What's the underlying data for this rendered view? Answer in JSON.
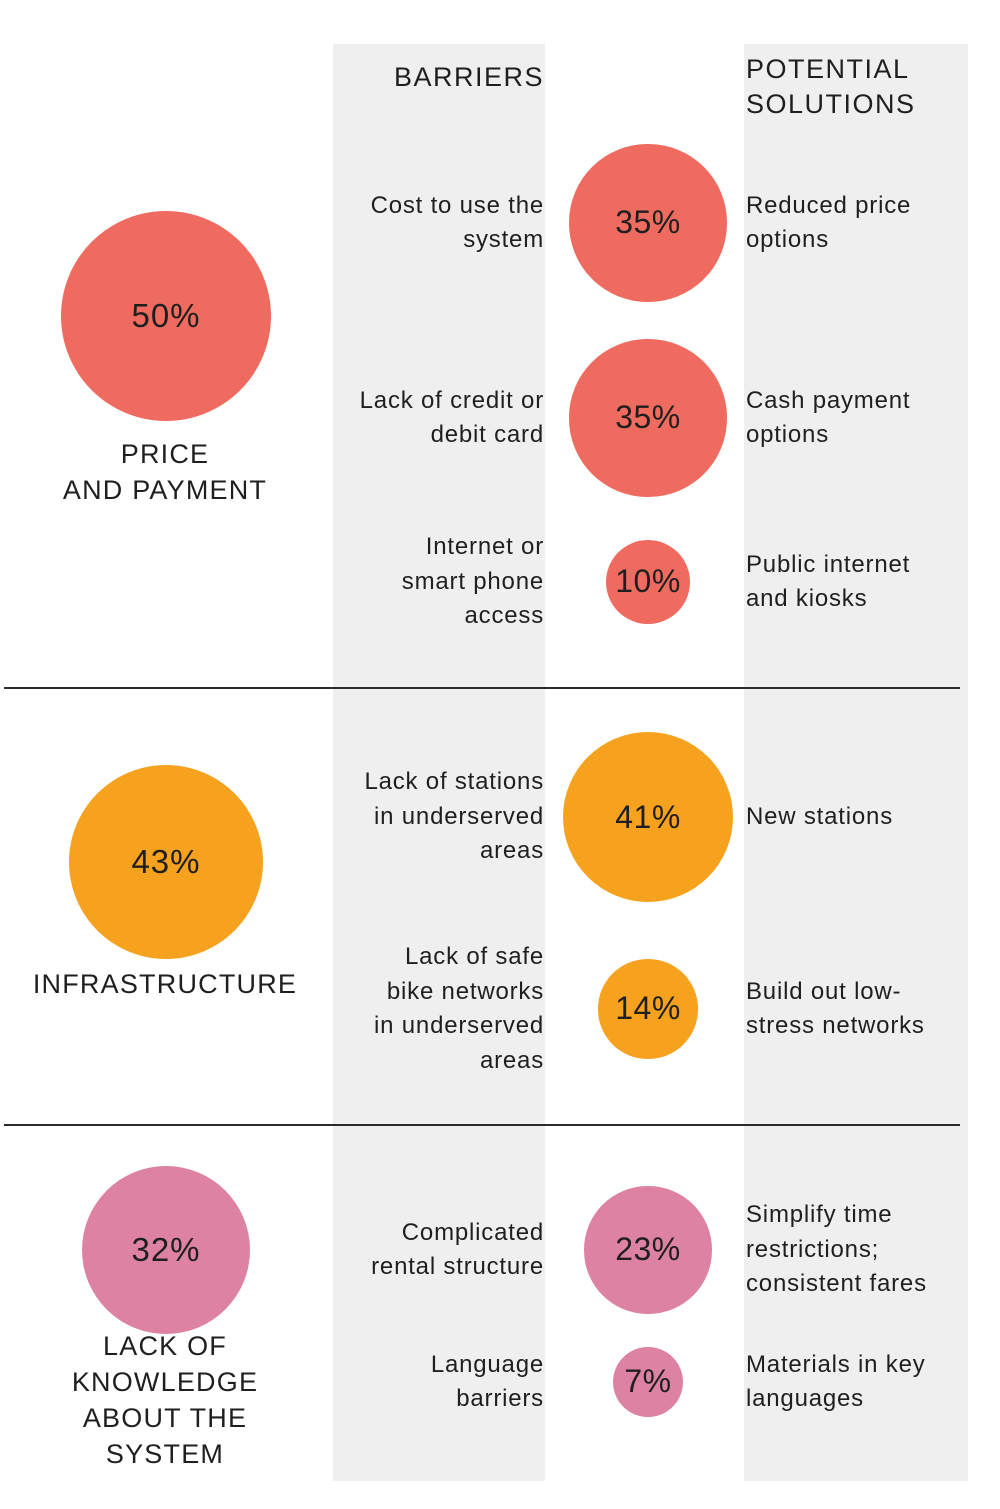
{
  "headers": {
    "barriers": "BARRIERS",
    "solutions_line1": "POTENTIAL",
    "solutions_line2": "SOLUTIONS"
  },
  "colors": {
    "price": "#f06b5f",
    "infrastructure": "#f6a21e",
    "knowledge": "#de82a3",
    "column_bg": "#efefef"
  },
  "categories": [
    {
      "label_lines": [
        "PRICE",
        "AND PAYMENT"
      ],
      "pct_label": "50%",
      "pct": 50,
      "items": [
        {
          "barrier_lines": [
            "Cost to use the",
            "system"
          ],
          "pct_label": "35%",
          "pct": 35,
          "solution_lines": [
            "Reduced price",
            "options"
          ]
        },
        {
          "barrier_lines": [
            "Lack of credit or",
            "debit card"
          ],
          "pct_label": "35%",
          "pct": 35,
          "solution_lines": [
            "Cash payment",
            "options"
          ]
        },
        {
          "barrier_lines": [
            "Internet or",
            "smart phone",
            "access"
          ],
          "pct_label": "10%",
          "pct": 10,
          "solution_lines": [
            "Public internet",
            "and kiosks"
          ]
        }
      ]
    },
    {
      "label_lines": [
        "INFRASTRUCTURE"
      ],
      "pct_label": "43%",
      "pct": 43,
      "items": [
        {
          "barrier_lines": [
            "Lack of stations",
            "in underserved",
            "areas"
          ],
          "pct_label": "41%",
          "pct": 41,
          "solution_lines": [
            "New stations"
          ]
        },
        {
          "barrier_lines": [
            "Lack of safe",
            "bike networks",
            "in underserved",
            "areas"
          ],
          "pct_label": "14%",
          "pct": 14,
          "solution_lines": [
            "Build out low-",
            "stress networks"
          ]
        }
      ]
    },
    {
      "label_lines": [
        "LACK OF",
        "KNOWLEDGE",
        "ABOUT THE",
        "SYSTEM"
      ],
      "pct_label": "32%",
      "pct": 32,
      "items": [
        {
          "barrier_lines": [
            "Complicated",
            "rental structure"
          ],
          "pct_label": "23%",
          "pct": 23,
          "solution_lines": [
            "Simplify time",
            "restrictions;",
            "consistent fares"
          ]
        },
        {
          "barrier_lines": [
            "Language",
            "barriers"
          ],
          "pct_label": "7%",
          "pct": 7,
          "solution_lines": [
            "Materials in key",
            "languages"
          ]
        }
      ]
    }
  ],
  "chart_data": {
    "type": "bubble",
    "value_unit": "%",
    "series": [
      {
        "category": "PRICE AND PAYMENT",
        "value": 50,
        "barriers": [
          {
            "barrier": "Cost to use the system",
            "value": 35,
            "solution": "Reduced price options"
          },
          {
            "barrier": "Lack of credit or debit card",
            "value": 35,
            "solution": "Cash payment options"
          },
          {
            "barrier": "Internet or smart phone access",
            "value": 10,
            "solution": "Public internet and kiosks"
          }
        ]
      },
      {
        "category": "INFRASTRUCTURE",
        "value": 43,
        "barriers": [
          {
            "barrier": "Lack of stations in underserved areas",
            "value": 41,
            "solution": "New stations"
          },
          {
            "barrier": "Lack of safe bike networks in underserved areas",
            "value": 14,
            "solution": "Build out low-stress networks"
          }
        ]
      },
      {
        "category": "LACK OF KNOWLEDGE ABOUT THE SYSTEM",
        "value": 32,
        "barriers": [
          {
            "barrier": "Complicated rental structure",
            "value": 23,
            "solution": "Simplify time restrictions; consistent fares"
          },
          {
            "barrier": "Language barriers",
            "value": 7,
            "solution": "Materials in key languages"
          }
        ]
      }
    ]
  }
}
